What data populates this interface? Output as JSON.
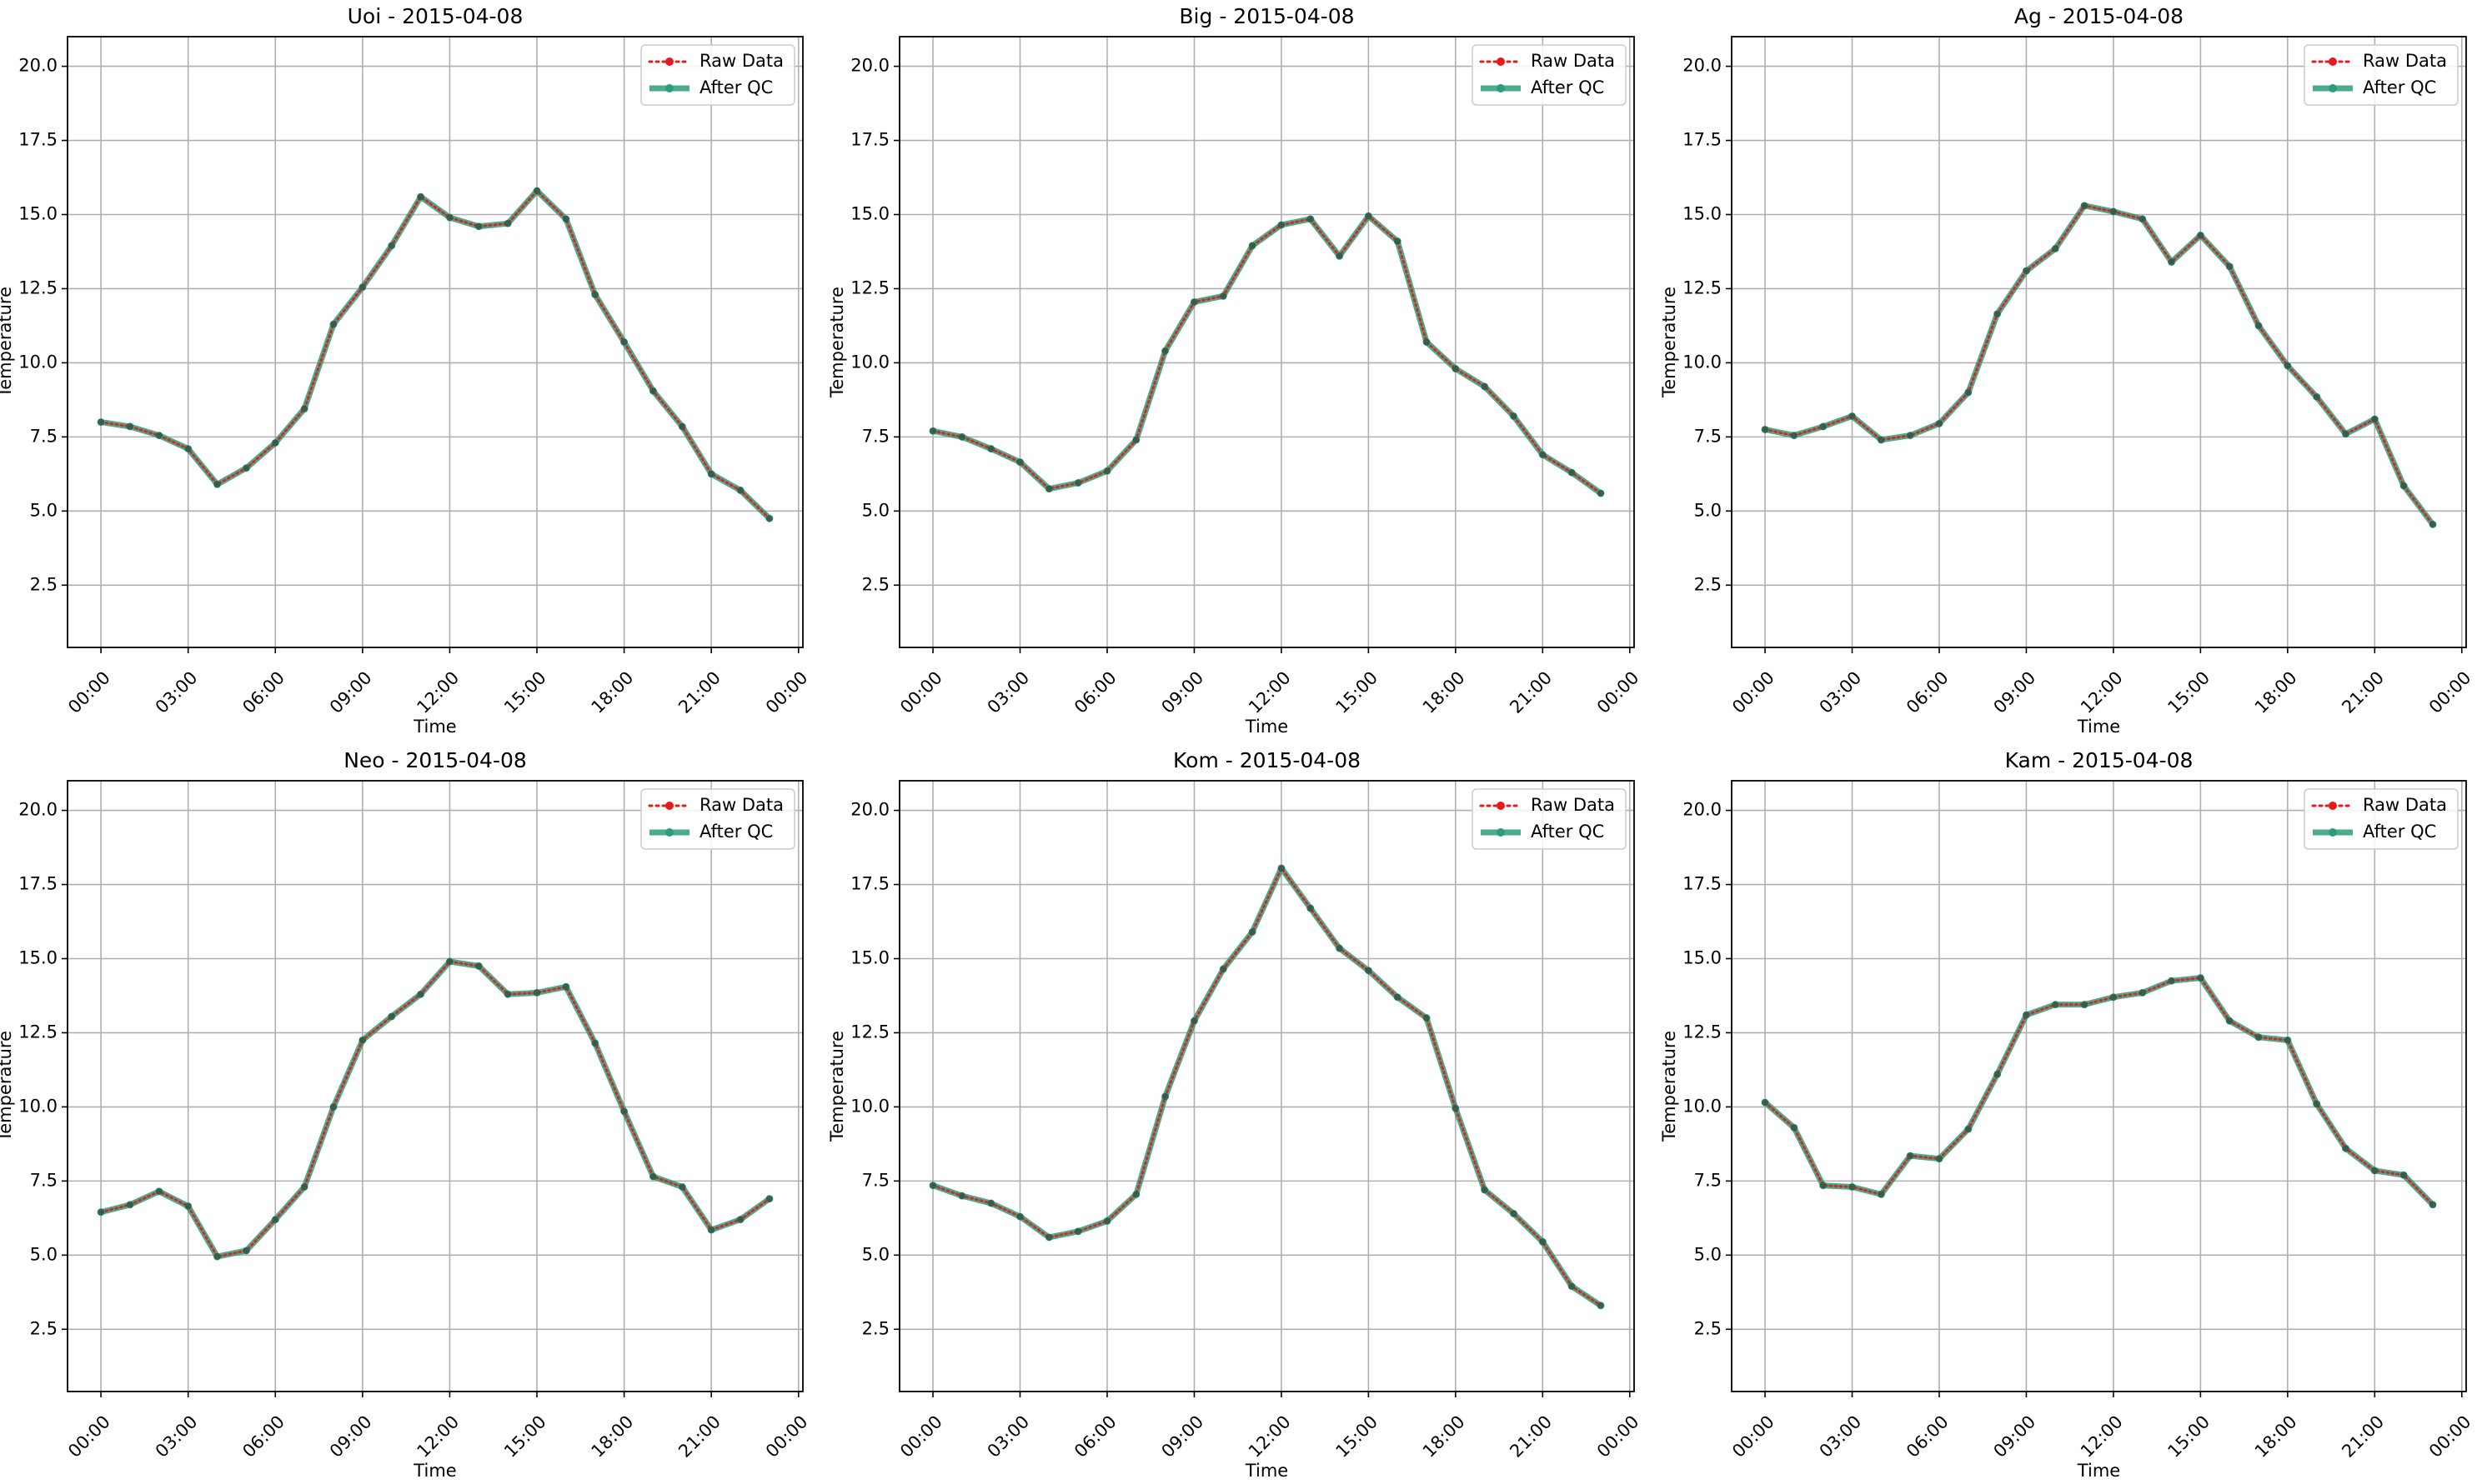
{
  "chart_data": [
    {
      "type": "line",
      "title": "Uoi - 2015-04-08",
      "xlabel": "Time",
      "ylabel": "Temperature",
      "x_ticks": [
        "00:00",
        "03:00",
        "06:00",
        "09:00",
        "12:00",
        "15:00",
        "18:00",
        "21:00",
        "00:00"
      ],
      "y_ticks": [
        "2.5",
        "5.0",
        "7.5",
        "10.0",
        "12.5",
        "15.0",
        "17.5",
        "20.0"
      ],
      "xlim_hours": [
        -1.15,
        24.15
      ],
      "ylim": [
        0.4,
        21.0
      ],
      "legend": "top-right",
      "grid": true,
      "x_hours": [
        0,
        1,
        2,
        3,
        4,
        5,
        6,
        7,
        8,
        9,
        10,
        11,
        12,
        13,
        14,
        15,
        16,
        17,
        18,
        19,
        20,
        21,
        22,
        23
      ],
      "series": [
        {
          "name": "Raw Data",
          "color": "#e41a1c",
          "values": [
            8.0,
            7.85,
            7.55,
            7.1,
            5.9,
            6.45,
            7.3,
            8.45,
            11.3,
            12.55,
            13.95,
            15.6,
            14.9,
            14.6,
            14.7,
            15.8,
            14.85,
            12.3,
            10.7,
            9.05,
            7.85,
            6.25,
            5.7,
            4.75
          ]
        },
        {
          "name": "After QC",
          "color": "#2a9d78",
          "values": [
            8.0,
            7.85,
            7.55,
            7.1,
            5.9,
            6.45,
            7.3,
            8.45,
            11.3,
            12.55,
            13.95,
            15.6,
            14.9,
            14.6,
            14.7,
            15.8,
            14.85,
            12.3,
            10.7,
            9.05,
            7.85,
            6.25,
            5.7,
            4.75
          ]
        }
      ]
    },
    {
      "type": "line",
      "title": "Big - 2015-04-08",
      "xlabel": "Time",
      "ylabel": "Temperature",
      "x_ticks": [
        "00:00",
        "03:00",
        "06:00",
        "09:00",
        "12:00",
        "15:00",
        "18:00",
        "21:00",
        "00:00"
      ],
      "y_ticks": [
        "2.5",
        "5.0",
        "7.5",
        "10.0",
        "12.5",
        "15.0",
        "17.5",
        "20.0"
      ],
      "xlim_hours": [
        -1.15,
        24.15
      ],
      "ylim": [
        0.4,
        21.0
      ],
      "legend": "top-right",
      "grid": true,
      "x_hours": [
        0,
        1,
        2,
        3,
        4,
        5,
        6,
        7,
        8,
        9,
        10,
        11,
        12,
        13,
        14,
        15,
        16,
        17,
        18,
        19,
        20,
        21,
        22,
        23
      ],
      "series": [
        {
          "name": "Raw Data",
          "color": "#e41a1c",
          "values": [
            7.7,
            7.5,
            7.1,
            6.65,
            5.75,
            5.95,
            6.35,
            7.4,
            10.4,
            12.05,
            12.25,
            13.95,
            14.65,
            14.85,
            13.6,
            14.95,
            14.1,
            10.7,
            9.8,
            9.2,
            8.2,
            6.9,
            6.3,
            5.6
          ]
        },
        {
          "name": "After QC",
          "color": "#2a9d78",
          "values": [
            7.7,
            7.5,
            7.1,
            6.65,
            5.75,
            5.95,
            6.35,
            7.4,
            10.4,
            12.05,
            12.25,
            13.95,
            14.65,
            14.85,
            13.6,
            14.95,
            14.1,
            10.7,
            9.8,
            9.2,
            8.2,
            6.9,
            6.3,
            5.6
          ]
        }
      ]
    },
    {
      "type": "line",
      "title": "Ag - 2015-04-08",
      "xlabel": "Time",
      "ylabel": "Temperature",
      "x_ticks": [
        "00:00",
        "03:00",
        "06:00",
        "09:00",
        "12:00",
        "15:00",
        "18:00",
        "21:00",
        "00:00"
      ],
      "y_ticks": [
        "2.5",
        "5.0",
        "7.5",
        "10.0",
        "12.5",
        "15.0",
        "17.5",
        "20.0"
      ],
      "xlim_hours": [
        -1.15,
        24.15
      ],
      "ylim": [
        0.4,
        21.0
      ],
      "legend": "top-right",
      "grid": true,
      "x_hours": [
        0,
        1,
        2,
        3,
        4,
        5,
        6,
        7,
        8,
        9,
        10,
        11,
        12,
        13,
        14,
        15,
        16,
        17,
        18,
        19,
        20,
        21,
        22,
        23
      ],
      "series": [
        {
          "name": "Raw Data",
          "color": "#e41a1c",
          "values": [
            7.75,
            7.55,
            7.85,
            8.2,
            7.4,
            7.55,
            7.95,
            9.0,
            11.65,
            13.1,
            13.85,
            15.3,
            15.1,
            14.85,
            13.4,
            14.3,
            13.25,
            11.25,
            9.9,
            8.85,
            7.6,
            8.1,
            5.85,
            4.55
          ]
        },
        {
          "name": "After QC",
          "color": "#2a9d78",
          "values": [
            7.75,
            7.55,
            7.85,
            8.2,
            7.4,
            7.55,
            7.95,
            9.0,
            11.65,
            13.1,
            13.85,
            15.3,
            15.1,
            14.85,
            13.4,
            14.3,
            13.25,
            11.25,
            9.9,
            8.85,
            7.6,
            8.1,
            5.85,
            4.55
          ]
        }
      ]
    },
    {
      "type": "line",
      "title": "Neo - 2015-04-08",
      "xlabel": "Time",
      "ylabel": "Temperature",
      "x_ticks": [
        "00:00",
        "03:00",
        "06:00",
        "09:00",
        "12:00",
        "15:00",
        "18:00",
        "21:00",
        "00:00"
      ],
      "y_ticks": [
        "2.5",
        "5.0",
        "7.5",
        "10.0",
        "12.5",
        "15.0",
        "17.5",
        "20.0"
      ],
      "xlim_hours": [
        -1.15,
        24.15
      ],
      "ylim": [
        0.4,
        21.0
      ],
      "legend": "top-right",
      "grid": true,
      "x_hours": [
        0,
        1,
        2,
        3,
        4,
        5,
        6,
        7,
        8,
        9,
        10,
        11,
        12,
        13,
        14,
        15,
        16,
        17,
        18,
        19,
        20,
        21,
        22,
        23
      ],
      "series": [
        {
          "name": "Raw Data",
          "color": "#e41a1c",
          "values": [
            6.45,
            6.7,
            7.15,
            6.65,
            4.95,
            5.15,
            6.2,
            7.3,
            10.0,
            12.25,
            13.05,
            13.8,
            14.9,
            14.75,
            13.8,
            13.85,
            14.05,
            12.15,
            9.85,
            7.65,
            7.3,
            5.85,
            6.2,
            6.9
          ]
        },
        {
          "name": "After QC",
          "color": "#2a9d78",
          "values": [
            6.45,
            6.7,
            7.15,
            6.65,
            4.95,
            5.15,
            6.2,
            7.3,
            10.0,
            12.25,
            13.05,
            13.8,
            14.9,
            14.75,
            13.8,
            13.85,
            14.05,
            12.15,
            9.85,
            7.65,
            7.3,
            5.85,
            6.2,
            6.9
          ]
        }
      ]
    },
    {
      "type": "line",
      "title": "Kom - 2015-04-08",
      "xlabel": "Time",
      "ylabel": "Temperature",
      "x_ticks": [
        "00:00",
        "03:00",
        "06:00",
        "09:00",
        "12:00",
        "15:00",
        "18:00",
        "21:00",
        "00:00"
      ],
      "y_ticks": [
        "2.5",
        "5.0",
        "7.5",
        "10.0",
        "12.5",
        "15.0",
        "17.5",
        "20.0"
      ],
      "xlim_hours": [
        -1.15,
        24.15
      ],
      "ylim": [
        0.4,
        21.0
      ],
      "legend": "top-right",
      "grid": true,
      "x_hours": [
        0,
        1,
        2,
        3,
        4,
        5,
        6,
        7,
        8,
        9,
        10,
        11,
        12,
        13,
        14,
        15,
        16,
        17,
        18,
        19,
        20,
        21,
        22,
        23
      ],
      "series": [
        {
          "name": "Raw Data",
          "color": "#e41a1c",
          "values": [
            7.35,
            7.0,
            6.75,
            6.3,
            5.6,
            5.8,
            6.15,
            7.05,
            10.35,
            12.9,
            14.65,
            15.9,
            18.05,
            16.7,
            15.35,
            14.6,
            13.7,
            13.0,
            9.95,
            7.2,
            6.4,
            5.45,
            3.95,
            3.3
          ]
        },
        {
          "name": "After QC",
          "color": "#2a9d78",
          "values": [
            7.35,
            7.0,
            6.75,
            6.3,
            5.6,
            5.8,
            6.15,
            7.05,
            10.35,
            12.9,
            14.65,
            15.9,
            18.05,
            16.7,
            15.35,
            14.6,
            13.7,
            13.0,
            9.95,
            7.2,
            6.4,
            5.45,
            3.95,
            3.3
          ]
        }
      ]
    },
    {
      "type": "line",
      "title": "Kam - 2015-04-08",
      "xlabel": "Time",
      "ylabel": "Temperature",
      "x_ticks": [
        "00:00",
        "03:00",
        "06:00",
        "09:00",
        "12:00",
        "15:00",
        "18:00",
        "21:00",
        "00:00"
      ],
      "y_ticks": [
        "2.5",
        "5.0",
        "7.5",
        "10.0",
        "12.5",
        "15.0",
        "17.5",
        "20.0"
      ],
      "xlim_hours": [
        -1.15,
        24.15
      ],
      "ylim": [
        0.4,
        21.0
      ],
      "legend": "top-right",
      "grid": true,
      "x_hours": [
        0,
        1,
        2,
        3,
        4,
        5,
        6,
        7,
        8,
        9,
        10,
        11,
        12,
        13,
        14,
        15,
        16,
        17,
        18,
        19,
        20,
        21,
        22,
        23
      ],
      "series": [
        {
          "name": "Raw Data",
          "color": "#e41a1c",
          "values": [
            10.15,
            9.3,
            7.35,
            7.3,
            7.05,
            8.35,
            8.25,
            9.25,
            11.1,
            13.1,
            13.45,
            13.45,
            13.7,
            13.85,
            14.25,
            14.35,
            12.9,
            12.35,
            12.25,
            10.1,
            8.6,
            7.85,
            7.7,
            6.7
          ]
        },
        {
          "name": "After QC",
          "color": "#2a9d78",
          "values": [
            10.15,
            9.3,
            7.35,
            7.3,
            7.05,
            8.35,
            8.25,
            9.25,
            11.1,
            13.1,
            13.45,
            13.45,
            13.7,
            13.85,
            14.25,
            14.35,
            12.9,
            12.35,
            12.25,
            10.1,
            8.6,
            7.85,
            7.7,
            6.7
          ]
        }
      ]
    }
  ]
}
